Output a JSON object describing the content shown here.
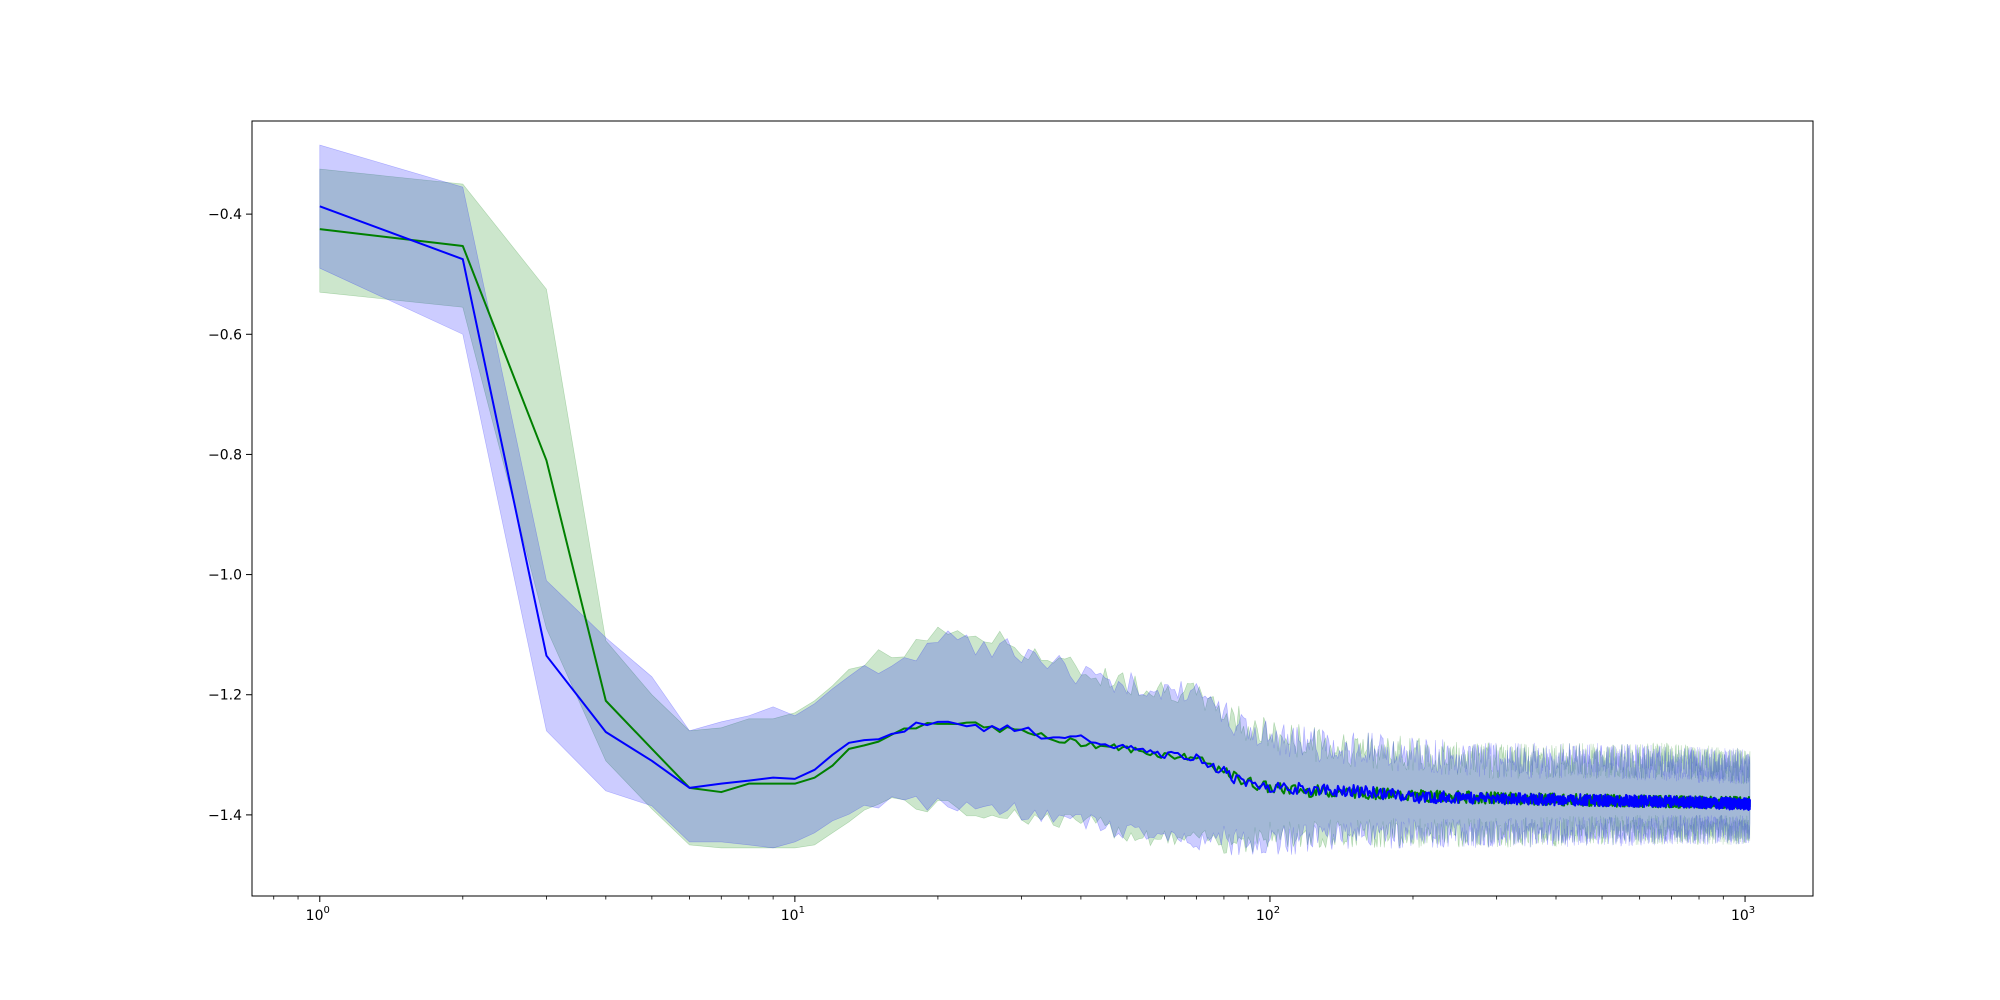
{
  "chart_data": {
    "type": "line",
    "title": "",
    "xlabel": "",
    "ylabel": "",
    "xscale": "log",
    "xlim": [
      0.72,
      1390
    ],
    "ylim": [
      -1.535,
      -0.245
    ],
    "grid": false,
    "legend": "none",
    "x_major_ticks": [
      {
        "value": 1,
        "base": "10",
        "exp": "0"
      },
      {
        "value": 10,
        "base": "10",
        "exp": "1"
      },
      {
        "value": 100,
        "base": "10",
        "exp": "2"
      },
      {
        "value": 1000,
        "base": "10",
        "exp": "3"
      }
    ],
    "y_ticks": [
      {
        "value": -0.4,
        "label": "−0.4"
      },
      {
        "value": -0.6,
        "label": "−0.6"
      },
      {
        "value": -0.8,
        "label": "−0.8"
      },
      {
        "value": -1.0,
        "label": "−1.0"
      },
      {
        "value": -1.2,
        "label": "−1.2"
      },
      {
        "value": -1.4,
        "label": "−1.4"
      }
    ],
    "series": [
      {
        "color": "#008000",
        "fill_color": "#008000",
        "fill_opacity": 0.2,
        "x": [
          1,
          2,
          3,
          4,
          5,
          6,
          7,
          8,
          9,
          10,
          11,
          12,
          13,
          15,
          17,
          20,
          22,
          25,
          30,
          35,
          40,
          50,
          60,
          70,
          80,
          90,
          100,
          120,
          150,
          200,
          300,
          500,
          700,
          1024
        ],
        "mean": [
          -0.425,
          -0.453,
          -0.81,
          -1.21,
          -1.29,
          -1.355,
          -1.362,
          -1.348,
          -1.348,
          -1.348,
          -1.338,
          -1.318,
          -1.29,
          -1.273,
          -1.258,
          -1.243,
          -1.245,
          -1.255,
          -1.26,
          -1.275,
          -1.28,
          -1.29,
          -1.3,
          -1.305,
          -1.33,
          -1.345,
          -1.355,
          -1.36,
          -1.362,
          -1.368,
          -1.372,
          -1.376,
          -1.378,
          -1.38
        ],
        "upper": [
          -0.325,
          -0.35,
          -0.525,
          -1.11,
          -1.2,
          -1.26,
          -1.255,
          -1.24,
          -1.24,
          -1.23,
          -1.21,
          -1.185,
          -1.16,
          -1.14,
          -1.12,
          -1.105,
          -1.09,
          -1.105,
          -1.12,
          -1.145,
          -1.16,
          -1.18,
          -1.19,
          -1.2,
          -1.23,
          -1.25,
          -1.27,
          -1.28,
          -1.29,
          -1.3,
          -1.31,
          -1.31,
          -1.31,
          -1.32
        ],
        "lower": [
          -0.53,
          -0.555,
          -1.09,
          -1.31,
          -1.39,
          -1.45,
          -1.455,
          -1.455,
          -1.455,
          -1.455,
          -1.45,
          -1.43,
          -1.4,
          -1.385,
          -1.375,
          -1.39,
          -1.39,
          -1.395,
          -1.4,
          -1.41,
          -1.41,
          -1.43,
          -1.44,
          -1.44,
          -1.44,
          -1.44,
          -1.435,
          -1.43,
          -1.43,
          -1.43,
          -1.43,
          -1.425,
          -1.425,
          -1.425
        ]
      },
      {
        "color": "#0000ff",
        "fill_color": "#0000ff",
        "fill_opacity": 0.2,
        "x": [
          1,
          2,
          3,
          4,
          5,
          6,
          7,
          8,
          9,
          10,
          11,
          12,
          13,
          15,
          17,
          20,
          22,
          25,
          30,
          35,
          40,
          50,
          60,
          70,
          80,
          90,
          100,
          120,
          150,
          200,
          300,
          500,
          700,
          1024
        ],
        "mean": [
          -0.387,
          -0.475,
          -1.135,
          -1.262,
          -1.31,
          -1.355,
          -1.348,
          -1.343,
          -1.338,
          -1.34,
          -1.325,
          -1.3,
          -1.275,
          -1.272,
          -1.258,
          -1.24,
          -1.245,
          -1.255,
          -1.255,
          -1.275,
          -1.272,
          -1.29,
          -1.3,
          -1.305,
          -1.33,
          -1.348,
          -1.352,
          -1.358,
          -1.36,
          -1.37,
          -1.372,
          -1.376,
          -1.378,
          -1.382
        ],
        "upper": [
          -0.285,
          -0.355,
          -1.01,
          -1.105,
          -1.17,
          -1.26,
          -1.245,
          -1.235,
          -1.22,
          -1.235,
          -1.215,
          -1.19,
          -1.165,
          -1.15,
          -1.135,
          -1.11,
          -1.115,
          -1.12,
          -1.13,
          -1.15,
          -1.165,
          -1.18,
          -1.19,
          -1.2,
          -1.23,
          -1.255,
          -1.27,
          -1.28,
          -1.29,
          -1.3,
          -1.31,
          -1.31,
          -1.315,
          -1.32
        ],
        "lower": [
          -0.49,
          -0.6,
          -1.26,
          -1.36,
          -1.385,
          -1.445,
          -1.445,
          -1.45,
          -1.455,
          -1.445,
          -1.43,
          -1.41,
          -1.395,
          -1.385,
          -1.375,
          -1.38,
          -1.385,
          -1.39,
          -1.395,
          -1.4,
          -1.41,
          -1.43,
          -1.44,
          -1.445,
          -1.44,
          -1.45,
          -1.445,
          -1.44,
          -1.435,
          -1.43,
          -1.43,
          -1.428,
          -1.425,
          -1.425
        ]
      }
    ]
  }
}
